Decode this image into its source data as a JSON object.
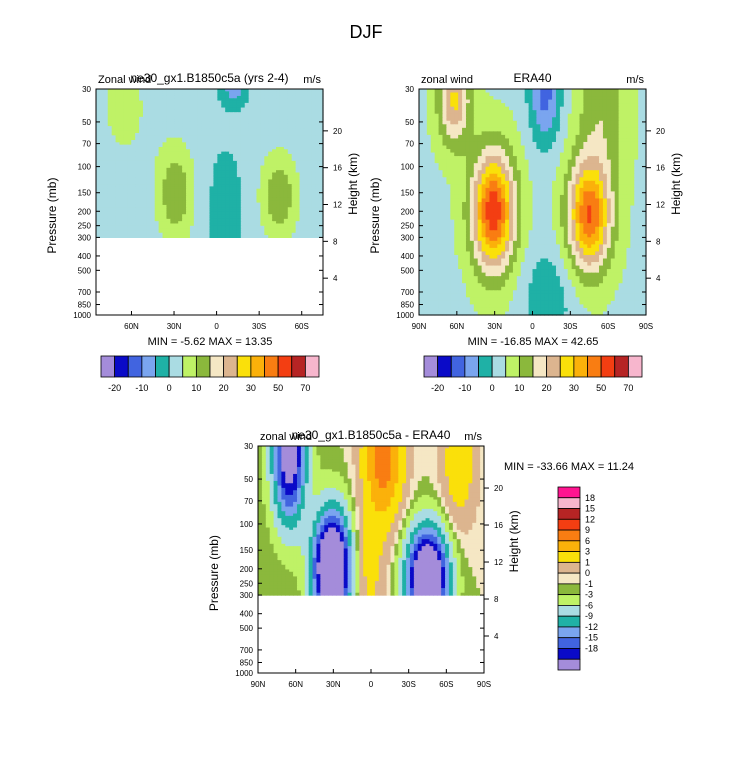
{
  "figure_title": "DJF",
  "chart_data": [
    {
      "type": "heatmap",
      "id": "model",
      "title": "ne30_gx1.B1850c5a (yrs 2-4)",
      "left_label": "Zonal wind",
      "right_label": "m/s",
      "ylabel": "Pressure (mb)",
      "ylabel_right": "Height (km)",
      "x_ticks": [
        "60N",
        "30N",
        "0",
        "30S",
        "60S"
      ],
      "y_ticks": [
        "30",
        "50",
        "70",
        "100",
        "150",
        "200",
        "250",
        "300",
        "400",
        "500",
        "700",
        "850",
        "1000"
      ],
      "height_ticks": [
        "20",
        "16",
        "12",
        "8",
        "4"
      ],
      "data_top_hpa": 300,
      "stats": "MIN = -5.62  MAX = 13.35",
      "min": -5.62,
      "max": 13.35,
      "colorbar_labels": [
        "-20",
        "-10",
        "0",
        "10",
        "20",
        "30",
        "50",
        "70"
      ],
      "levels": [
        -20,
        -15,
        -10,
        -5,
        0,
        5,
        10,
        15,
        20,
        25,
        30,
        35,
        40,
        50,
        60,
        70
      ]
    },
    {
      "type": "heatmap",
      "id": "era40",
      "title": "ERA40",
      "left_label": "zonal wind",
      "right_label": "m/s",
      "ylabel": "Pressure (mb)",
      "ylabel_right": "Height (km)",
      "x_ticks": [
        "90N",
        "60N",
        "30N",
        "0",
        "30S",
        "60S",
        "90S"
      ],
      "y_ticks": [
        "30",
        "50",
        "70",
        "100",
        "150",
        "200",
        "250",
        "300",
        "400",
        "500",
        "700",
        "850",
        "1000"
      ],
      "height_ticks": [
        "20",
        "16",
        "12",
        "8",
        "4"
      ],
      "stats": "MIN = -16.85  MAX =  42.65",
      "min": -16.85,
      "max": 42.65,
      "colorbar_labels": [
        "-20",
        "-10",
        "0",
        "10",
        "20",
        "30",
        "50",
        "70"
      ],
      "levels": [
        -20,
        -15,
        -10,
        -5,
        0,
        5,
        10,
        15,
        20,
        25,
        30,
        35,
        40,
        50,
        60,
        70
      ]
    },
    {
      "type": "heatmap",
      "id": "diff",
      "title": "ne30_gx1.B1850c5a - ERA40",
      "left_label": "zonal wind",
      "right_label": "m/s",
      "ylabel": "Pressure (mb)",
      "ylabel_right": "Height (km)",
      "x_ticks": [
        "90N",
        "60N",
        "30N",
        "0",
        "30S",
        "60S",
        "90S"
      ],
      "y_ticks": [
        "30",
        "50",
        "70",
        "100",
        "150",
        "200",
        "250",
        "300",
        "400",
        "500",
        "700",
        "850",
        "1000"
      ],
      "height_ticks": [
        "20",
        "16",
        "12",
        "8",
        "4"
      ],
      "data_top_hpa": 300,
      "stats": "MIN = -33.66  MAX = 11.24",
      "min": -33.66,
      "max": 11.24,
      "colorbar_labels": [
        "18",
        "15",
        "12",
        "9",
        "6",
        "3",
        "1",
        "0",
        "-1",
        "-3",
        "-6",
        "-9",
        "-12",
        "-15",
        "-18"
      ],
      "levels": [
        18,
        15,
        12,
        9,
        6,
        3,
        1,
        0,
        -1,
        -3,
        -6,
        -9,
        -12,
        -15,
        -18
      ]
    }
  ],
  "palette_16": [
    "#a48cda",
    "#0a0ac8",
    "#4164e0",
    "#7aa5ef",
    "#1fb1a6",
    "#aadce3",
    "#bff266",
    "#8bb83c",
    "#f5e7c4",
    "#dcb58f",
    "#fae00a",
    "#fbb10a",
    "#f97d12",
    "#f33e12",
    "#b62424",
    "#f7b6cd",
    "#ff1490"
  ],
  "palette_diff": [
    "#ff1490",
    "#f7b6cd",
    "#b62424",
    "#f33e12",
    "#f97d12",
    "#fbb10a",
    "#fae00a",
    "#dcb58f",
    "#f5e7c4",
    "#8bb83c",
    "#bff266",
    "#aadce3",
    "#1fb1a6",
    "#7aa5ef",
    "#4164e0",
    "#0a0ac8",
    "#a48cda"
  ]
}
